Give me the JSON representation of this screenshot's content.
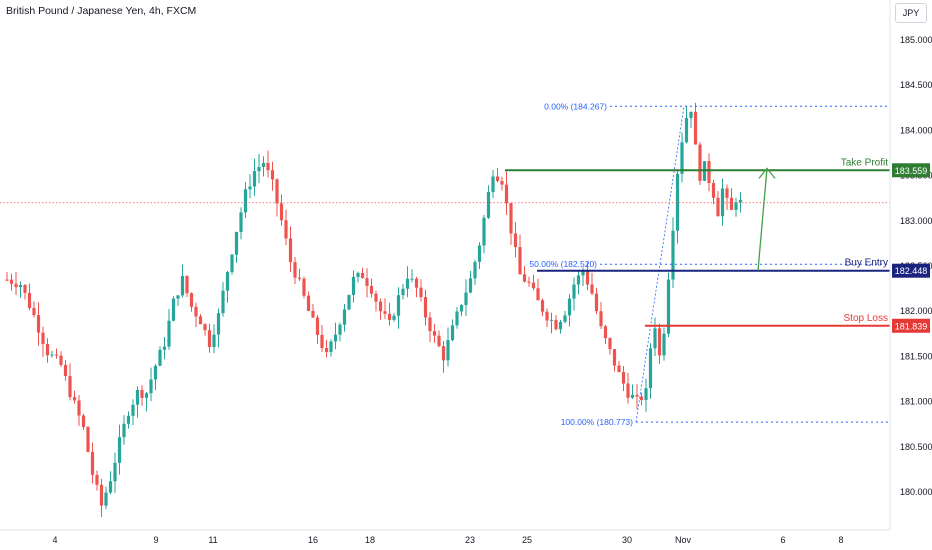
{
  "title": "British Pound / Japanese Yen, 4h, FXCM",
  "currency_label": "JPY",
  "colors": {
    "bull": "#26a69a",
    "bear": "#ef5350",
    "take_profit": "#2e7d32",
    "buy_entry": "#1a237e",
    "stop_loss": "#e53935",
    "fib": "#2962ff",
    "arrow": "#43a047"
  },
  "chart_data": {
    "type": "candlestick",
    "timeframe": "4h",
    "y_axis": {
      "ticks": [
        "185.000",
        "184.500",
        "184.000",
        "183.500",
        "183.000",
        "182.500",
        "182.000",
        "181.500",
        "181.000",
        "180.500",
        "180.000"
      ],
      "range": [
        179.65,
        185.25
      ]
    },
    "x_axis": {
      "ticks": [
        "4",
        "9",
        "11",
        "16",
        "18",
        "23",
        "25",
        "30",
        "Nov",
        "6",
        "8"
      ]
    },
    "levels": [
      {
        "name": "Take Profit",
        "value": "183.559",
        "price": 183.559
      },
      {
        "name": "Buy Entry",
        "value": "182.448",
        "price": 182.448
      },
      {
        "name": "Stop Loss",
        "value": "181.839",
        "price": 181.839
      }
    ],
    "fibonacci": [
      {
        "label": "0.00% (184.267)",
        "price": 184.267
      },
      {
        "label": "50.00% (182.520)",
        "price": 182.52
      },
      {
        "label": "100.00% (180.773)",
        "price": 180.773
      }
    ],
    "current_price": 183.2
  }
}
